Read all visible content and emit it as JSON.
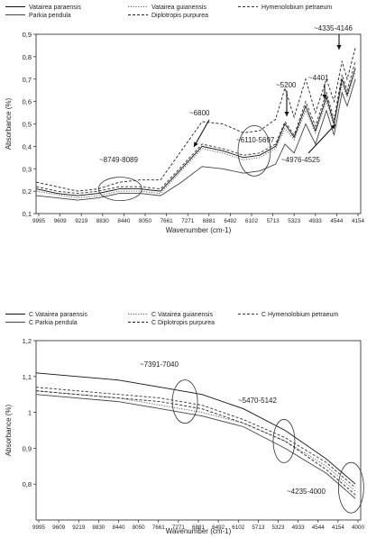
{
  "chart_data": [
    {
      "type": "line",
      "xlabel": "Wavenumber (cm-1)",
      "ylabel": "Absorbance (%)",
      "x_reversed": true,
      "xlim": [
        10000,
        3900
      ],
      "ylim": [
        0.1,
        0.9
      ],
      "x_tick_labels": [
        "9995",
        "9609",
        "9219",
        "8830",
        "8440",
        "8050",
        "7661",
        "7271",
        "6881",
        "6492",
        "6102",
        "5713",
        "5323",
        "4933",
        "4544",
        "4154"
      ],
      "y_ticks": [
        0.1,
        0.2,
        0.3,
        0.4,
        0.5,
        0.6,
        0.7,
        0.8,
        0.9
      ],
      "y_tick_labels": [
        "0,1",
        "0,2",
        "0,3",
        "0,4",
        "0,5",
        "0,6",
        "0,7",
        "0,8",
        "0,9"
      ],
      "grid": false,
      "legend_position": "top",
      "series": [
        {
          "name": "Vatairea paraensis",
          "style": "solid",
          "color": "#111111",
          "x": [
            9995,
            9609,
            9219,
            8830,
            8440,
            8050,
            7661,
            7271,
            6881,
            6492,
            6102,
            5800,
            5500,
            5323,
            5150,
            4933,
            4750,
            4544,
            4400,
            4250,
            4154,
            4000
          ],
          "y": [
            0.21,
            0.19,
            0.18,
            0.19,
            0.21,
            0.21,
            0.2,
            0.3,
            0.4,
            0.38,
            0.35,
            0.36,
            0.4,
            0.5,
            0.44,
            0.58,
            0.47,
            0.62,
            0.5,
            0.7,
            0.63,
            0.75
          ]
        },
        {
          "name": "Vatairea guianensis",
          "style": "dotted",
          "color": "#555555",
          "x": [
            9995,
            9609,
            9219,
            8830,
            8440,
            8050,
            7661,
            7271,
            6881,
            6492,
            6102,
            5800,
            5500,
            5323,
            5150,
            4933,
            4750,
            4544,
            4400,
            4250,
            4154,
            4000
          ],
          "y": [
            0.2,
            0.185,
            0.17,
            0.18,
            0.2,
            0.2,
            0.19,
            0.29,
            0.39,
            0.37,
            0.34,
            0.35,
            0.39,
            0.48,
            0.43,
            0.56,
            0.46,
            0.6,
            0.49,
            0.68,
            0.62,
            0.73
          ]
        },
        {
          "name": "Hymenolobium petraeum",
          "style": "dashed",
          "color": "#333333",
          "x": [
            9995,
            9609,
            9219,
            8830,
            8440,
            8050,
            7661,
            7271,
            6881,
            6492,
            6102,
            5800,
            5500,
            5323,
            5150,
            4933,
            4750,
            4544,
            4400,
            4250,
            4154,
            4000
          ],
          "y": [
            0.22,
            0.2,
            0.19,
            0.2,
            0.22,
            0.22,
            0.21,
            0.31,
            0.41,
            0.39,
            0.36,
            0.37,
            0.41,
            0.51,
            0.45,
            0.6,
            0.49,
            0.64,
            0.52,
            0.72,
            0.65,
            0.78
          ]
        },
        {
          "name": "Parkia pendula",
          "style": "solid",
          "color": "#444444",
          "x": [
            9995,
            9609,
            9219,
            8830,
            8440,
            8050,
            7661,
            7271,
            6881,
            6492,
            6102,
            5800,
            5500,
            5323,
            5150,
            4933,
            4750,
            4544,
            4400,
            4250,
            4154,
            4000
          ],
          "y": [
            0.18,
            0.17,
            0.16,
            0.17,
            0.19,
            0.19,
            0.18,
            0.24,
            0.31,
            0.3,
            0.28,
            0.29,
            0.32,
            0.41,
            0.37,
            0.5,
            0.41,
            0.56,
            0.45,
            0.64,
            0.58,
            0.7
          ]
        },
        {
          "name": "Diplotropis purpurea",
          "style": "dashed",
          "color": "#222222",
          "x": [
            9995,
            9609,
            9219,
            8830,
            8440,
            8050,
            7661,
            7271,
            6881,
            6492,
            6102,
            5800,
            5500,
            5323,
            5150,
            4933,
            4750,
            4544,
            4400,
            4250,
            4154,
            4000
          ],
          "y": [
            0.24,
            0.22,
            0.2,
            0.21,
            0.24,
            0.25,
            0.25,
            0.38,
            0.51,
            0.5,
            0.46,
            0.47,
            0.52,
            0.66,
            0.53,
            0.7,
            0.55,
            0.7,
            0.6,
            0.78,
            0.7,
            0.84
          ]
        }
      ],
      "annotations": [
        {
          "text": "~8749-8089",
          "marker": "ellipse",
          "x": 8420,
          "y": 0.21
        },
        {
          "text": "~6800",
          "marker": "arrow",
          "x": 6880,
          "y": 0.5
        },
        {
          "text": "~6110-5697",
          "marker": "ellipse",
          "x": 5900,
          "y": 0.38
        },
        {
          "text": "~5200",
          "marker": "arrow",
          "x": 5260,
          "y": 0.65
        },
        {
          "text": "~4401",
          "marker": "arrow",
          "x": 4560,
          "y": 0.66
        },
        {
          "text": "~4335-4146",
          "marker": "arrow",
          "x": 4190,
          "y": 0.7
        },
        {
          "text": "~4976-4525",
          "marker": "arrow",
          "x": 4660,
          "y": 0.45
        }
      ]
    },
    {
      "type": "line",
      "xlabel": "Wavenumber (cm-1)",
      "ylabel": "Absorbance (%)",
      "x_reversed": true,
      "xlim": [
        9995,
        3900
      ],
      "ylim": [
        0.7,
        1.2
      ],
      "x_tick_labels": [
        "9995",
        "9609",
        "9219",
        "8830",
        "8440",
        "8050",
        "7661",
        "7271",
        "6881",
        "6492",
        "6102",
        "5713",
        "5323",
        "4933",
        "4544",
        "4154",
        "4000"
      ],
      "y_ticks": [
        0.8,
        0.9,
        1.0,
        1.1,
        1.2
      ],
      "y_tick_labels": [
        "0,8",
        "0,9",
        "1",
        "1,1",
        "1,2"
      ],
      "grid": false,
      "legend_position": "top",
      "series": [
        {
          "name": "C Vatairea paraensis",
          "style": "solid",
          "color": "#111111",
          "x": [
            9995,
            9219,
            8440,
            7661,
            7271,
            6881,
            6102,
            5323,
            4544,
            4154,
            4000
          ],
          "y": [
            1.11,
            1.1,
            1.09,
            1.07,
            1.06,
            1.05,
            1.01,
            0.95,
            0.87,
            0.82,
            0.8
          ]
        },
        {
          "name": "C Vatairea guianensis",
          "style": "dotted",
          "color": "#555555",
          "x": [
            9995,
            9219,
            8440,
            7661,
            7271,
            6881,
            6102,
            5323,
            4544,
            4154,
            4000
          ],
          "y": [
            1.06,
            1.05,
            1.04,
            1.02,
            1.01,
            1.0,
            0.97,
            0.92,
            0.85,
            0.8,
            0.78
          ]
        },
        {
          "name": "C Hymenolobium petraeum",
          "style": "dashed",
          "color": "#333333",
          "x": [
            9995,
            9219,
            8440,
            7661,
            7271,
            6881,
            6102,
            5323,
            4544,
            4154,
            4000
          ],
          "y": [
            1.07,
            1.06,
            1.05,
            1.04,
            1.03,
            1.02,
            0.98,
            0.93,
            0.86,
            0.81,
            0.79
          ]
        },
        {
          "name": "C Parkia pendula",
          "style": "solid",
          "color": "#444444",
          "x": [
            9995,
            9219,
            8440,
            7661,
            7271,
            6881,
            6102,
            5323,
            4544,
            4154,
            4000
          ],
          "y": [
            1.05,
            1.04,
            1.03,
            1.01,
            1.0,
            0.99,
            0.96,
            0.9,
            0.83,
            0.78,
            0.76
          ]
        },
        {
          "name": "C Diplotropis purpurea",
          "style": "dashed",
          "color": "#222222",
          "x": [
            9995,
            9219,
            8440,
            7661,
            7271,
            6881,
            6102,
            5323,
            4544,
            4154,
            4000
          ],
          "y": [
            1.06,
            1.05,
            1.04,
            1.03,
            1.02,
            1.01,
            0.97,
            0.92,
            0.84,
            0.79,
            0.77
          ]
        }
      ],
      "annotations": [
        {
          "text": "~7391-7040",
          "marker": "ellipse",
          "x": 7200,
          "y": 1.03
        },
        {
          "text": "~5470-5142",
          "marker": "ellipse",
          "x": 5340,
          "y": 0.92
        },
        {
          "text": "~4235-4000",
          "marker": "ellipse",
          "x": 4080,
          "y": 0.79
        }
      ]
    }
  ]
}
